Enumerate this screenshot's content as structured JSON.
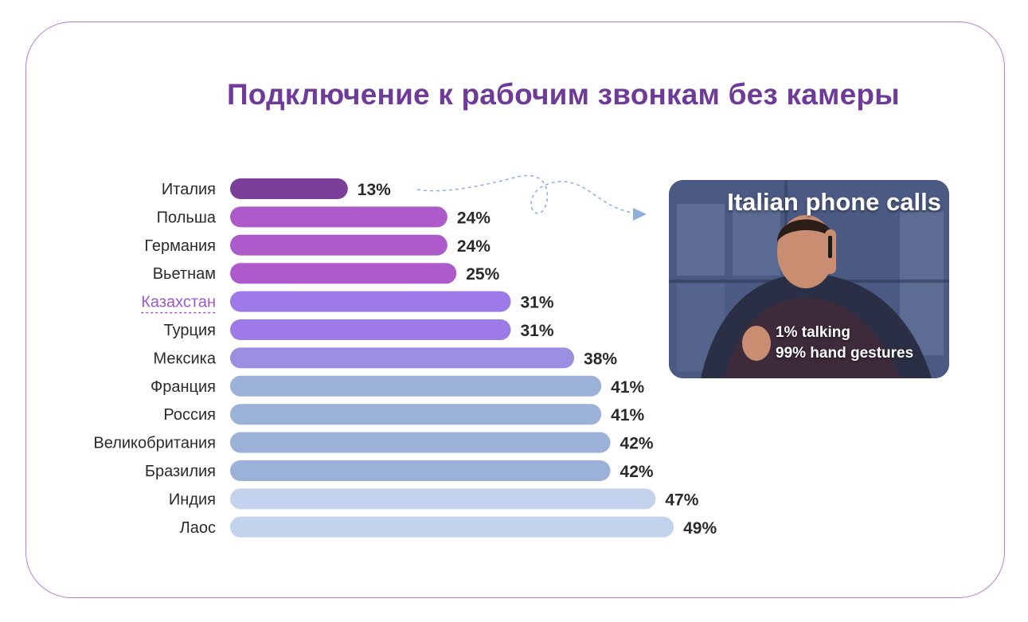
{
  "title": "Подключение к рабочим звонкам без камеры",
  "chart_data": {
    "type": "bar",
    "orientation": "horizontal",
    "title": "Подключение к рабочим звонкам без камеры",
    "categories": [
      "Италия",
      "Польша",
      "Германия",
      "Вьетнам",
      "Казахстан",
      "Турция",
      "Мексика",
      "Франция",
      "Россия",
      "Великобритания",
      "Бразилия",
      "Индия",
      "Лаос"
    ],
    "values": [
      13,
      24,
      24,
      25,
      31,
      31,
      38,
      41,
      41,
      42,
      42,
      47,
      49
    ],
    "value_suffix": "%",
    "highlighted_category": "Казахстан",
    "bar_colors": [
      "#7b3f9a",
      "#ad5bca",
      "#ad5bca",
      "#ad5bca",
      "#9d7ae8",
      "#9d7ae8",
      "#9a8fe0",
      "#9bb1d8",
      "#9bb1d8",
      "#9bb1d8",
      "#9bb1d8",
      "#c3d3ee",
      "#c3d3ee"
    ],
    "label_color": "#2a2a2a",
    "highlight_color": "#9b59c4",
    "grid": false,
    "legend": "none"
  },
  "photo": {
    "title": "Italian phone calls",
    "caption_line1": "1% talking",
    "caption_line2": "99% hand gestures"
  },
  "colors": {
    "title": "#6e3c98",
    "border": "#b57fd1",
    "arrow": "#8faedb"
  }
}
